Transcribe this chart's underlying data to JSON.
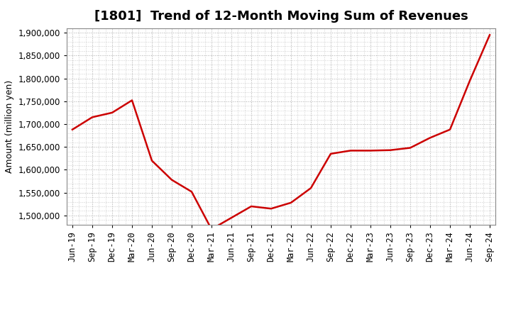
{
  "title": "[1801]  Trend of 12-Month Moving Sum of Revenues",
  "ylabel": "Amount (million yen)",
  "line_color": "#cc0000",
  "background_color": "#ffffff",
  "grid_color": "#aaaaaa",
  "x_labels": [
    "Jun-19",
    "Sep-19",
    "Dec-19",
    "Mar-20",
    "Jun-20",
    "Sep-20",
    "Dec-20",
    "Mar-21",
    "Jun-21",
    "Sep-21",
    "Dec-21",
    "Mar-22",
    "Jun-22",
    "Sep-22",
    "Dec-22",
    "Mar-23",
    "Jun-23",
    "Sep-23",
    "Dec-23",
    "Mar-24",
    "Jun-24",
    "Sep-24"
  ],
  "y_values": [
    1688000,
    1715000,
    1725000,
    1752000,
    1620000,
    1578000,
    1552000,
    1470000,
    1495000,
    1520000,
    1515000,
    1528000,
    1560000,
    1635000,
    1642000,
    1642000,
    1643000,
    1648000,
    1670000,
    1688000,
    1795000,
    1895000
  ],
  "ylim": [
    1480000,
    1910000
  ],
  "yticks": [
    1500000,
    1550000,
    1600000,
    1650000,
    1700000,
    1750000,
    1800000,
    1850000,
    1900000
  ],
  "title_fontsize": 13,
  "label_fontsize": 9,
  "tick_fontsize": 8.5
}
